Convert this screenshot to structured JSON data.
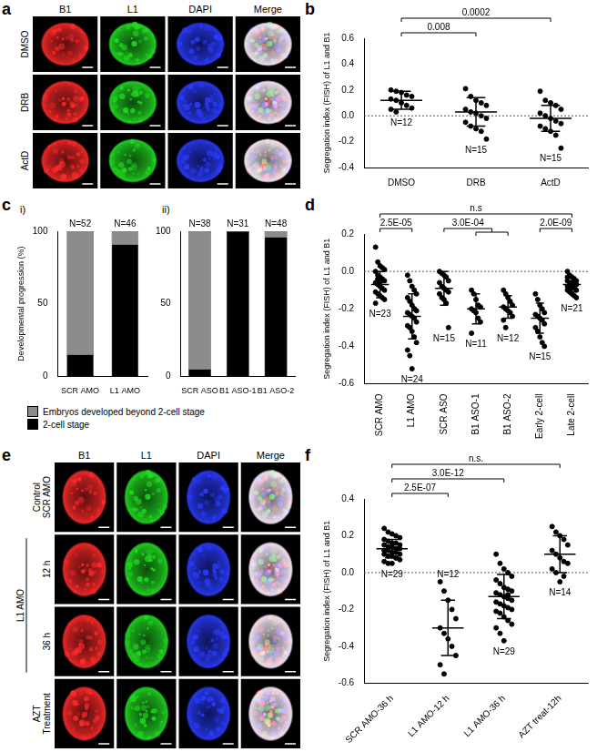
{
  "image_panels": [
    {
      "panel_label": "a",
      "columns": [
        {
          "name": "B1",
          "color": "#ff2a2a"
        },
        {
          "name": "L1",
          "color": "#22dd22"
        },
        {
          "name": "DAPI",
          "color": "#2a3cff"
        },
        {
          "name": "Merge"
        }
      ],
      "rows": [
        {
          "lines": [
            "DMSO"
          ]
        },
        {
          "lines": [
            "DRB"
          ]
        },
        {
          "lines": [
            "ActD"
          ]
        }
      ]
    },
    {
      "panel_label": "e",
      "columns": [
        {
          "name": "B1",
          "color": "#ff2a2a"
        },
        {
          "name": "L1",
          "color": "#22dd22"
        },
        {
          "name": "DAPI",
          "color": "#2a3cff"
        },
        {
          "name": "Merge"
        }
      ],
      "rows": [
        {
          "lines": [
            "Control",
            "SCR AMO"
          ]
        },
        {
          "lines": [
            "12 h"
          ]
        },
        {
          "lines": [
            "36 h"
          ]
        },
        {
          "lines": [
            "AZT",
            "Treatment"
          ]
        }
      ],
      "row_groups": [
        {
          "text": "L1 AMO",
          "rows": [
            "12 h",
            "36 h"
          ]
        }
      ]
    }
  ],
  "chart_data": [
    {
      "panel_label": "b",
      "type": "scatter",
      "y_label": "Segregation index (FISH) of L1 and B1",
      "categories": [
        "DMSO",
        "DRB",
        "ActD"
      ],
      "values": [
        [
          0.2,
          0.19,
          0.18,
          0.16,
          0.15,
          0.13,
          0.12,
          0.1,
          0.08,
          0.06,
          0.05,
          0.03
        ],
        [
          0.21,
          0.15,
          0.12,
          0.1,
          0.08,
          0.05,
          0.03,
          0.02,
          0.0,
          -0.02,
          -0.05,
          -0.08,
          -0.1,
          -0.12,
          -0.18
        ],
        [
          0.19,
          0.12,
          0.1,
          0.08,
          0.05,
          0.02,
          0.0,
          -0.02,
          -0.04,
          -0.06,
          -0.08,
          -0.1,
          -0.12,
          -0.15,
          -0.25
        ]
      ],
      "mean": [
        0.12,
        0.03,
        -0.02
      ],
      "sd": [
        0.07,
        0.11,
        0.1
      ],
      "n_labels": [
        "N=12",
        "N=15",
        "N=15"
      ],
      "comparisons": [
        {
          "between": [
            "DMSO",
            "DRB"
          ],
          "text": "0.008"
        },
        {
          "between": [
            "DMSO",
            "ActD"
          ],
          "text": "0.0002"
        }
      ],
      "reference_line": 0,
      "ylim": [
        -0.4,
        0.6
      ],
      "yticks": [
        -0.4,
        -0.2,
        {
          "value": 0,
          "label": "0.0"
        },
        0.2,
        0.4,
        0.6
      ],
      "color": "#000000",
      "marker": "circle",
      "grid": false
    },
    {
      "panel_label": "c",
      "sub_label": "i)",
      "type": "bar",
      "stacked": true,
      "y_label": "Developmental progression (%)",
      "categories": [
        "SCR AMO",
        "L1 AMO"
      ],
      "series": [
        {
          "name": "2-cell stage",
          "color": "#000000",
          "values": [
            15,
            91
          ]
        },
        {
          "name": "Embryos developed beyond 2-cell stage",
          "color": "#8c8c8c",
          "values": [
            85,
            9
          ]
        }
      ],
      "n_labels": [
        "N=52",
        "N=46"
      ],
      "ylim": [
        0,
        100
      ],
      "yticks": [
        0,
        50,
        100
      ],
      "legend": "bottom",
      "grid": false
    },
    {
      "sub_label": "ii)",
      "type": "bar",
      "stacked": true,
      "categories": [
        "SCR ASO",
        "B1 ASO-1",
        "B1 ASO-2"
      ],
      "series": [
        {
          "name": "2-cell stage",
          "color": "#000000",
          "values": [
            5,
            100,
            96
          ]
        },
        {
          "name": "Embryos developed beyond 2-cell stage",
          "color": "#8c8c8c",
          "values": [
            95,
            0,
            4
          ]
        }
      ],
      "n_labels": [
        "N=38",
        "N=31",
        "N=48"
      ],
      "ylim": [
        0,
        100
      ],
      "yticks": [
        0,
        50,
        100
      ],
      "grid": false
    },
    {
      "panel_label": "d",
      "type": "scatter",
      "y_label": "Segregation index (FISH) of L1 and B1",
      "categories": [
        "SCR AMO",
        "L1 AMO",
        "SCR ASO",
        "B1 ASO-1",
        "B1 ASO-2",
        "Early 2-cell",
        "Late 2-cell"
      ],
      "values": [
        [
          0.13,
          0.05,
          0.03,
          0.02,
          0.01,
          0.0,
          -0.02,
          -0.03,
          -0.04,
          -0.05,
          -0.06,
          -0.07,
          -0.08,
          -0.09,
          -0.1,
          -0.11,
          -0.12,
          -0.13,
          -0.14,
          -0.15,
          -0.17,
          -0.04,
          -0.06
        ],
        [
          -0.02,
          -0.05,
          -0.08,
          -0.1,
          -0.12,
          -0.14,
          -0.16,
          -0.18,
          -0.2,
          -0.21,
          -0.22,
          -0.23,
          -0.24,
          -0.25,
          -0.27,
          -0.29,
          -0.3,
          -0.32,
          -0.35,
          -0.38,
          -0.42,
          -0.45,
          -0.52,
          -0.2
        ],
        [
          0.0,
          -0.01,
          -0.02,
          -0.03,
          -0.05,
          -0.06,
          -0.08,
          -0.09,
          -0.1,
          -0.11,
          -0.12,
          -0.14,
          -0.15,
          -0.17,
          -0.3
        ],
        [
          -0.1,
          -0.12,
          -0.15,
          -0.18,
          -0.19,
          -0.2,
          -0.21,
          -0.22,
          -0.25,
          -0.27,
          -0.33
        ],
        [
          -0.1,
          -0.12,
          -0.14,
          -0.16,
          -0.18,
          -0.19,
          -0.2,
          -0.21,
          -0.22,
          -0.24,
          -0.26,
          -0.3
        ],
        [
          -0.12,
          -0.15,
          -0.18,
          -0.2,
          -0.22,
          -0.23,
          -0.24,
          -0.25,
          -0.26,
          -0.28,
          -0.3,
          -0.32,
          -0.35,
          -0.38,
          -0.4
        ],
        [
          0.0,
          -0.02,
          -0.03,
          -0.04,
          -0.05,
          -0.05,
          -0.06,
          -0.06,
          -0.07,
          -0.07,
          -0.08,
          -0.08,
          -0.09,
          -0.09,
          -0.1,
          -0.1,
          -0.11,
          -0.12,
          -0.13,
          -0.14,
          -0.03
        ]
      ],
      "mean": [
        -0.07,
        -0.24,
        -0.09,
        -0.2,
        -0.19,
        -0.25,
        -0.07
      ],
      "sd": [
        0.07,
        0.12,
        0.09,
        0.08,
        0.06,
        0.08,
        0.04
      ],
      "n_labels": [
        "N=23",
        "N=24",
        "N=15",
        "N=11",
        "N=12",
        "N=15",
        "N=21"
      ],
      "comparisons": [
        {
          "between": [
            "SCR AMO",
            "L1 AMO"
          ],
          "text": "2.5E-05"
        },
        {
          "between": [
            "SCR ASO",
            "B1 ASO-1",
            "B1 ASO-2"
          ],
          "text": "3.0E-04"
        },
        {
          "between": [
            "Early 2-cell",
            "Late 2-cell"
          ],
          "text": "2.0E-09"
        },
        {
          "between": [
            "SCR AMO",
            "Late 2-cell"
          ],
          "text": "n.s"
        }
      ],
      "reference_line": 0,
      "ylim": [
        -0.6,
        0.2
      ],
      "yticks": [
        -0.6,
        -0.4,
        -0.2,
        {
          "value": 0,
          "label": "0.0"
        },
        0.2
      ],
      "color": "#000000",
      "marker": "circle",
      "grid": false
    },
    {
      "panel_label": "f",
      "type": "scatter",
      "y_label": "Segregation index (FISH) of L1 and B1",
      "categories": [
        "SCR AMO-36 h",
        "L1 AMO-12 h",
        "L1 AMO-36 h",
        "AZT treat-12h"
      ],
      "values": [
        [
          0.24,
          0.22,
          0.21,
          0.2,
          0.19,
          0.18,
          0.17,
          0.16,
          0.16,
          0.15,
          0.15,
          0.14,
          0.14,
          0.13,
          0.13,
          0.12,
          0.12,
          0.11,
          0.11,
          0.1,
          0.1,
          0.09,
          0.09,
          0.08,
          0.07,
          0.06,
          0.05,
          0.05,
          0.08
        ],
        [
          -0.05,
          -0.1,
          -0.15,
          -0.2,
          -0.25,
          -0.3,
          -0.33,
          -0.36,
          -0.4,
          -0.45,
          -0.5,
          -0.55
        ],
        [
          0.1,
          0.05,
          0.02,
          0.0,
          -0.02,
          -0.04,
          -0.06,
          -0.08,
          -0.09,
          -0.1,
          -0.11,
          -0.12,
          -0.13,
          -0.14,
          -0.15,
          -0.16,
          -0.17,
          -0.18,
          -0.19,
          -0.2,
          -0.21,
          -0.22,
          -0.24,
          -0.26,
          -0.28,
          -0.3,
          -0.33,
          -0.37,
          -0.12
        ],
        [
          0.25,
          0.22,
          0.2,
          0.18,
          0.15,
          0.12,
          0.1,
          0.08,
          0.06,
          0.05,
          0.02,
          0.0,
          -0.05,
          -0.02
        ]
      ],
      "mean": [
        0.13,
        -0.3,
        -0.13,
        0.1
      ],
      "sd": [
        0.05,
        0.15,
        0.12,
        0.1
      ],
      "n_labels": [
        "N=29",
        "N=12",
        "N=29",
        "N=14"
      ],
      "comparisons": [
        {
          "between": [
            "SCR AMO-36 h",
            "L1 AMO-12 h"
          ],
          "text": "2.5E-07"
        },
        {
          "between": [
            "SCR AMO-36 h",
            "L1 AMO-36 h"
          ],
          "text": "3.0E-12"
        },
        {
          "between": [
            "SCR AMO-36 h",
            "AZT treat-12h"
          ],
          "text": "n.s."
        }
      ],
      "reference_line": 0,
      "ylim": [
        -0.6,
        0.4
      ],
      "yticks": [
        -0.6,
        -0.4,
        -0.2,
        {
          "value": 0,
          "label": "0.0"
        },
        0.2,
        0.4
      ],
      "color": "#000000",
      "marker": "circle",
      "grid": false
    }
  ]
}
